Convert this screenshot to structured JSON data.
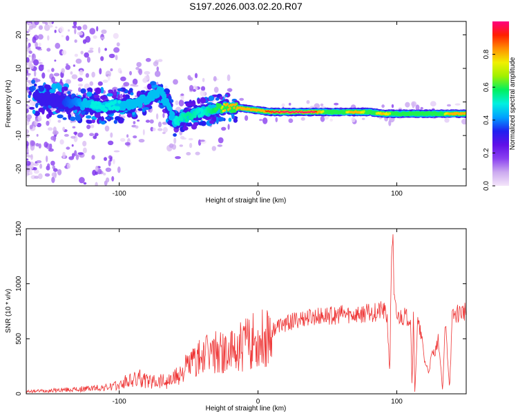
{
  "chart_data": [
    {
      "type": "heatmap",
      "title": "S197.2026.003.02.20.R07",
      "xlabel": "Height of straight line (km)",
      "ylabel": "Frequency (Hz)",
      "xlim": [
        -167,
        150
      ],
      "ylim": [
        -25,
        24
      ],
      "x_ticks": [
        -100,
        0,
        100
      ],
      "y_ticks": [
        -20,
        -10,
        0,
        10,
        20
      ],
      "x_tick_labels": [
        "-100",
        "0",
        "100"
      ],
      "y_tick_labels": [
        "-20",
        "-10",
        "0",
        "10",
        "20"
      ],
      "colorbar": {
        "label": "Normalized spectral amplitude",
        "range": [
          0,
          1
        ],
        "ticks": [
          0.0,
          0.2,
          0.4,
          0.6,
          0.8
        ],
        "tick_labels": [
          "0.0",
          "0.2",
          "0.4",
          "0.6",
          "0.8"
        ],
        "colors": [
          "#f4e6fa",
          "#ccaaf0",
          "#8a40f0",
          "#6010e8",
          "#2020f0",
          "#00a0ff",
          "#00f0e0",
          "#00f060",
          "#a0f000",
          "#f0f000",
          "#ff9000",
          "#ff2000",
          "#ff0080"
        ]
      },
      "grid": false,
      "ridge": {
        "x": [
          -160,
          -150,
          -140,
          -130,
          -120,
          -110,
          -100,
          -90,
          -80,
          -70,
          -60,
          -50,
          -40,
          -30,
          -20,
          -10,
          0,
          10,
          20,
          30,
          40,
          50,
          60,
          70,
          80,
          90,
          100,
          110,
          120,
          130,
          140,
          150
        ],
        "freq": [
          1.5,
          0.5,
          0,
          -0.5,
          -1,
          -1.5,
          -1,
          -1,
          1,
          3,
          -6,
          -4,
          -3,
          -2,
          -1.5,
          -2,
          -2.5,
          -3,
          -3,
          -3,
          -3,
          -3,
          -3,
          -3,
          -3,
          -3.5,
          -3.5,
          -3.5,
          -3.5,
          -3.5,
          -3.5,
          -3.5
        ],
        "amplitude": [
          0.3,
          0.3,
          0.35,
          0.4,
          0.5,
          0.5,
          0.5,
          0.45,
          0.45,
          0.45,
          0.5,
          0.55,
          0.5,
          0.6,
          0.9,
          0.8,
          0.85,
          0.95,
          1.0,
          1.0,
          1.0,
          0.6,
          0.6,
          0.9,
          0.6,
          0.8,
          0.6,
          0.6,
          0.6,
          0.6,
          0.85,
          0.9
        ]
      }
    },
    {
      "type": "line",
      "title": "",
      "xlabel": "Height of straight line (km)",
      "ylabel": "SNR (10 * v/v)",
      "xlim": [
        -167,
        150
      ],
      "ylim": [
        0,
        1500
      ],
      "x_ticks": [
        -100,
        0,
        100
      ],
      "y_ticks": [
        0,
        500,
        1000,
        1500
      ],
      "x_tick_labels": [
        "-100",
        "0",
        "100"
      ],
      "y_tick_labels": [
        "0",
        "500",
        "1000",
        "1500"
      ],
      "grid": false,
      "series": [
        {
          "color": "#ee3333",
          "x": [
            -167,
            -160,
            -150,
            -140,
            -130,
            -120,
            -110,
            -100,
            -95,
            -90,
            -85,
            -80,
            -75,
            -70,
            -65,
            -60,
            -55,
            -50,
            -45,
            -40,
            -35,
            -30,
            -25,
            -20,
            -15,
            -10,
            -5,
            0,
            5,
            10,
            15,
            20,
            25,
            30,
            35,
            40,
            45,
            50,
            55,
            60,
            65,
            70,
            75,
            80,
            85,
            90,
            93,
            95,
            96,
            97,
            98,
            100,
            105,
            110,
            111,
            112,
            113,
            115,
            118,
            120,
            123,
            125,
            128,
            130,
            133,
            135,
            138,
            140,
            142,
            145,
            148,
            150
          ],
          "y": [
            20,
            25,
            30,
            35,
            40,
            50,
            55,
            75,
            110,
            120,
            140,
            110,
            120,
            130,
            110,
            150,
            200,
            260,
            300,
            330,
            360,
            380,
            370,
            360,
            400,
            450,
            480,
            470,
            530,
            580,
            620,
            640,
            660,
            680,
            690,
            700,
            700,
            710,
            710,
            720,
            720,
            720,
            730,
            730,
            740,
            760,
            700,
            180,
            1200,
            1500,
            850,
            700,
            700,
            700,
            40,
            700,
            20,
            650,
            500,
            300,
            200,
            350,
            400,
            500,
            30,
            650,
            50,
            700,
            720,
            740,
            750,
            760
          ]
        }
      ]
    }
  ]
}
